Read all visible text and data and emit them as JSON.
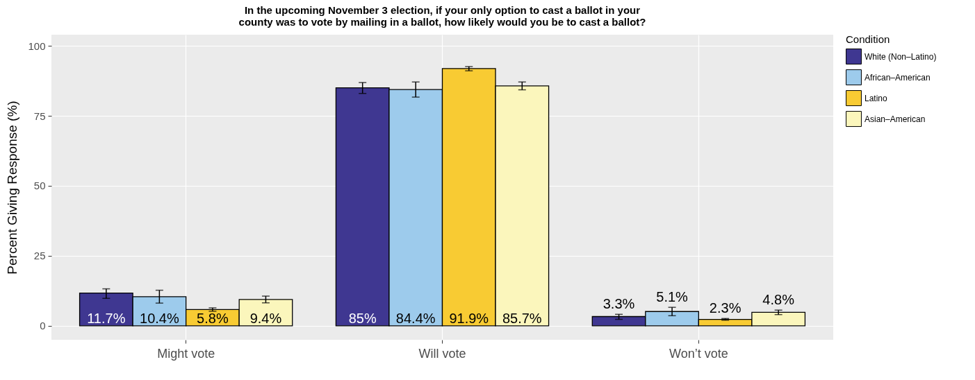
{
  "chart_data": {
    "type": "bar",
    "title": "In the upcoming November 3 election, if your only option to cast a ballot in your county was to vote by mailing in a ballot, how likely would you be to cast a ballot?",
    "ylabel": "Percent Giving Response (%)",
    "legend_title": "Condition",
    "categories": [
      "Might vote",
      "Will vote",
      "Won’t vote"
    ],
    "series": [
      {
        "name": "White (Non–Latino)",
        "color": "#3f3791",
        "values": [
          11.7,
          85,
          3.3
        ],
        "errors": [
          [
            9.8,
            13.2
          ],
          [
            83.0,
            86.9
          ],
          [
            2.3,
            4.1
          ]
        ],
        "value_labels": [
          "11.7%",
          "85%",
          "3.3%"
        ]
      },
      {
        "name": "African–American",
        "color": "#9dcbec",
        "values": [
          10.4,
          84.4,
          5.1
        ],
        "errors": [
          [
            8.1,
            12.7
          ],
          [
            81.7,
            87.1
          ],
          [
            3.6,
            6.6
          ]
        ],
        "value_labels": [
          "10.4%",
          "84.4%",
          "5.1%"
        ]
      },
      {
        "name": "Latino",
        "color": "#f8cb33",
        "values": [
          5.8,
          91.9,
          2.3
        ],
        "errors": [
          [
            5.2,
            6.4
          ],
          [
            91.1,
            92.6
          ],
          [
            2.0,
            2.6
          ]
        ],
        "value_labels": [
          "5.8%",
          "91.9%",
          "2.3%"
        ]
      },
      {
        "name": "Asian–American",
        "color": "#fbf6bc",
        "values": [
          9.4,
          85.7,
          4.8
        ],
        "errors": [
          [
            8.2,
            10.6
          ],
          [
            84.3,
            87.1
          ],
          [
            4.0,
            5.6
          ]
        ],
        "value_labels": [
          "9.4%",
          "85.7%",
          "4.8%"
        ]
      }
    ],
    "ylim": [
      -5,
      104
    ],
    "yticks": [
      0,
      25,
      50,
      75,
      100
    ],
    "grid": true,
    "legend": "right"
  }
}
